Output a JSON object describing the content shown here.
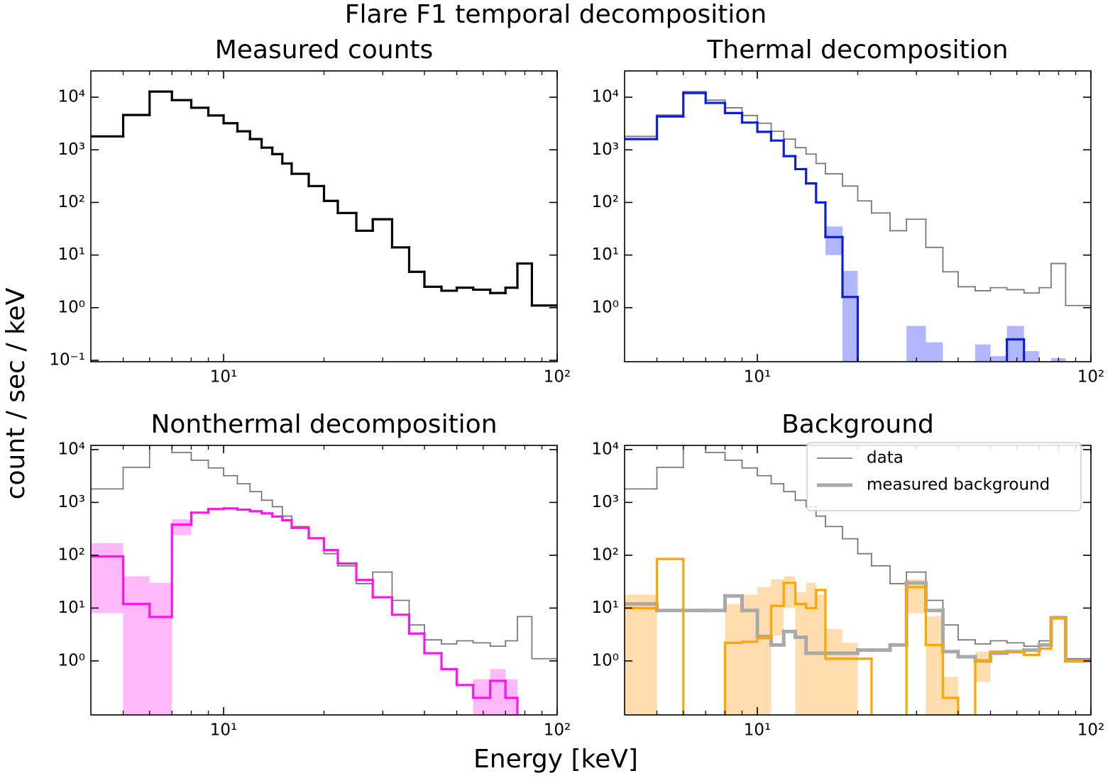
{
  "title": "Flare F1 temporal decomposition",
  "ylabel": "count / sec / keV",
  "xlabel": "Energy [keV]",
  "chart_data": [
    {
      "type": "histogram",
      "title": "Measured counts",
      "log_x": true,
      "log_y": true,
      "bins": [
        4,
        5,
        6,
        7,
        8,
        9,
        10,
        11,
        12,
        13,
        14,
        15,
        16,
        18,
        20,
        22,
        25,
        28,
        32,
        36,
        40,
        45,
        50,
        56,
        63,
        70,
        76,
        84,
        100
      ],
      "xlim": [
        4,
        100
      ],
      "xticks": [
        {
          "value": 10,
          "label": "10¹"
        },
        {
          "value": 100,
          "label": "10²"
        }
      ],
      "xminor": [
        5,
        6,
        7,
        8,
        9,
        20,
        30,
        40,
        50,
        60,
        70,
        80,
        90
      ],
      "ylim": [
        0.094,
        31600
      ],
      "yticks": [
        {
          "value": 0.1,
          "label": "10⁻¹"
        },
        {
          "value": 1,
          "label": "10⁰"
        },
        {
          "value": 10,
          "label": "10¹"
        },
        {
          "value": 100,
          "label": "10²"
        },
        {
          "value": 1000,
          "label": "10³"
        },
        {
          "value": 10000,
          "label": "10⁴"
        }
      ],
      "series": [
        {
          "color": "#000000",
          "width": 3.2,
          "values": [
            1800,
            4600,
            12800,
            8800,
            6300,
            4500,
            3200,
            2250,
            1600,
            1100,
            830,
            550,
            350,
            205,
            107,
            63,
            29,
            48,
            14,
            4.8,
            2.5,
            2.1,
            2.4,
            2.2,
            1.9,
            2.4,
            6.9,
            1.1
          ]
        }
      ]
    },
    {
      "type": "histogram",
      "title": "Thermal decomposition",
      "log_x": true,
      "log_y": true,
      "bins": [
        4,
        5,
        6,
        7,
        8,
        9,
        10,
        11,
        12,
        13,
        14,
        15,
        16,
        18,
        20,
        22,
        25,
        28,
        32,
        36,
        40,
        45,
        50,
        56,
        63,
        70,
        76,
        84,
        100
      ],
      "xlim": [
        4,
        100
      ],
      "xticks": [
        {
          "value": 10,
          "label": "10¹"
        },
        {
          "value": 100,
          "label": "10²"
        }
      ],
      "xminor": [
        5,
        6,
        7,
        8,
        9,
        20,
        30,
        40,
        50,
        60,
        70,
        80,
        90
      ],
      "ylim": [
        0.094,
        31600
      ],
      "yticks": [
        {
          "value": 1,
          "label": "10⁰"
        },
        {
          "value": 10,
          "label": "10¹"
        },
        {
          "value": 100,
          "label": "10²"
        },
        {
          "value": 1000,
          "label": "10³"
        },
        {
          "value": 10000,
          "label": "10⁴"
        }
      ],
      "series": [
        {
          "color": "#7a7a7a",
          "width": 1.8,
          "values": [
            1800,
            4600,
            12800,
            8800,
            6300,
            4500,
            3200,
            2250,
            1600,
            1100,
            830,
            550,
            350,
            205,
            107,
            63,
            29,
            48,
            14,
            4.8,
            2.5,
            2.1,
            2.4,
            2.2,
            1.9,
            2.4,
            6.9,
            1.1
          ]
        },
        {
          "color": "#0a1fe0",
          "band_color": "#9ea4ff",
          "width": 3.2,
          "values": [
            1600,
            4300,
            12000,
            7800,
            5000,
            3300,
            2200,
            1500,
            760,
            430,
            230,
            100,
            22,
            1.6,
            null,
            null,
            null,
            null,
            null,
            null,
            null,
            null,
            null,
            0.25,
            null,
            null,
            null,
            null
          ],
          "band_low": [
            null,
            null,
            null,
            null,
            null,
            null,
            null,
            null,
            null,
            null,
            null,
            null,
            10,
            null,
            null,
            null,
            null,
            null,
            null,
            null,
            null,
            null,
            null,
            null,
            null,
            null,
            null,
            null
          ],
          "band_high": [
            null,
            null,
            null,
            null,
            null,
            null,
            null,
            null,
            null,
            null,
            null,
            null,
            35,
            5,
            null,
            null,
            null,
            0.45,
            0.22,
            null,
            null,
            0.2,
            0.12,
            0.45,
            0.15,
            null,
            0.11,
            null
          ]
        }
      ]
    },
    {
      "type": "histogram",
      "title": "Nonthermal decomposition",
      "log_x": true,
      "log_y": true,
      "bins": [
        4,
        5,
        6,
        7,
        8,
        9,
        10,
        11,
        12,
        13,
        14,
        15,
        16,
        18,
        20,
        22,
        25,
        28,
        32,
        36,
        40,
        45,
        50,
        56,
        63,
        70,
        76,
        84,
        100
      ],
      "xlim": [
        4,
        100
      ],
      "xticks": [
        {
          "value": 10,
          "label": "10¹"
        },
        {
          "value": 100,
          "label": "10²"
        }
      ],
      "xminor": [
        5,
        6,
        7,
        8,
        9,
        20,
        30,
        40,
        50,
        60,
        70,
        80,
        90
      ],
      "ylim": [
        0.095,
        12000
      ],
      "yticks": [
        {
          "value": 1,
          "label": "10⁰"
        },
        {
          "value": 10,
          "label": "10¹"
        },
        {
          "value": 100,
          "label": "10²"
        },
        {
          "value": 1000,
          "label": "10³"
        },
        {
          "value": 10000,
          "label": "10⁴"
        }
      ],
      "series": [
        {
          "color": "#7a7a7a",
          "width": 1.8,
          "values": [
            1800,
            4600,
            12800,
            8800,
            6300,
            4500,
            3200,
            2250,
            1600,
            1100,
            830,
            550,
            350,
            205,
            107,
            63,
            29,
            48,
            14,
            4.8,
            2.5,
            2.1,
            2.4,
            2.2,
            1.9,
            2.4,
            6.9,
            1.1
          ]
        },
        {
          "color": "#ff14f0",
          "band_color": "#ffa6f7",
          "width": 3.2,
          "values": [
            95,
            12,
            6.8,
            380,
            640,
            750,
            770,
            730,
            680,
            620,
            540,
            460,
            330,
            210,
            125,
            70,
            34,
            16,
            7.5,
            3.3,
            1.4,
            0.7,
            0.35,
            0.2,
            0.42,
            0.2,
            null,
            null
          ],
          "band_low": [
            8,
            null,
            null,
            240,
            null,
            null,
            null,
            null,
            null,
            null,
            null,
            null,
            null,
            null,
            null,
            null,
            null,
            null,
            null,
            null,
            null,
            null,
            null,
            null,
            null,
            null,
            null,
            null
          ],
          "band_high": [
            170,
            40,
            30,
            480,
            null,
            null,
            null,
            null,
            null,
            null,
            null,
            null,
            null,
            null,
            null,
            null,
            null,
            null,
            null,
            null,
            null,
            null,
            null,
            0.45,
            0.7,
            0.45,
            null,
            null
          ]
        }
      ]
    },
    {
      "type": "histogram",
      "title": "Background",
      "log_x": true,
      "log_y": true,
      "legend": "upper right",
      "bins": [
        4,
        5,
        6,
        7,
        8,
        9,
        10,
        11,
        12,
        13,
        14,
        15,
        16,
        18,
        20,
        22,
        25,
        28,
        32,
        36,
        40,
        45,
        50,
        56,
        63,
        70,
        76,
        84,
        100
      ],
      "xlim": [
        4,
        100
      ],
      "xticks": [
        {
          "value": 10,
          "label": "10¹"
        },
        {
          "value": 100,
          "label": "10²"
        }
      ],
      "xminor": [
        5,
        6,
        7,
        8,
        9,
        20,
        30,
        40,
        50,
        60,
        70,
        80,
        90
      ],
      "ylim": [
        0.095,
        12000
      ],
      "yticks": [
        {
          "value": 1,
          "label": "10⁰"
        },
        {
          "value": 10,
          "label": "10¹"
        },
        {
          "value": 100,
          "label": "10²"
        },
        {
          "value": 1000,
          "label": "10³"
        },
        {
          "value": 10000,
          "label": "10⁴"
        }
      ],
      "series": [
        {
          "name": "data",
          "color": "#7a7a7a",
          "width": 1.8,
          "values": [
            1800,
            4600,
            12800,
            8800,
            6300,
            4500,
            3200,
            2250,
            1600,
            1100,
            830,
            550,
            350,
            205,
            107,
            63,
            29,
            48,
            14,
            4.8,
            2.5,
            2.1,
            2.4,
            2.2,
            1.9,
            2.4,
            6.9,
            1.1
          ]
        },
        {
          "name": "measured background",
          "color": "#a9a9a9",
          "width": 5,
          "values": [
            12,
            9,
            9,
            9,
            17,
            9,
            2.9,
            2.0,
            3.6,
            2.8,
            1.4,
            1.4,
            1.4,
            1.4,
            1.6,
            1.6,
            2.0,
            30,
            9,
            1.5,
            1.2,
            1.0,
            1.4,
            1.5,
            1.6,
            2.0,
            6.5,
            1.0
          ]
        },
        {
          "color": "#ffa500",
          "band_color": "#ffd49a",
          "width": 3.2,
          "values": [
            10,
            85,
            null,
            null,
            2.2,
            2.3,
            2.7,
            11,
            30,
            12,
            10,
            22,
            1.1,
            1.1,
            1.1,
            null,
            null,
            25,
            2.0,
            0.2,
            null,
            1.0,
            1.5,
            1.5,
            1.3,
            1.7,
            6.5,
            1.0
          ],
          "band_low": [
            null,
            null,
            null,
            null,
            null,
            null,
            null,
            3,
            10,
            null,
            null,
            null,
            null,
            null,
            null,
            null,
            null,
            8,
            null,
            null,
            null,
            0.4,
            null,
            null,
            null,
            null,
            null,
            null
          ],
          "band_high": [
            18,
            null,
            null,
            null,
            12,
            18,
            25,
            35,
            40,
            20,
            30,
            18,
            4,
            2.2,
            null,
            null,
            null,
            35,
            7,
            0.5,
            null,
            1.5,
            null,
            null,
            null,
            null,
            null,
            null
          ]
        }
      ]
    }
  ]
}
